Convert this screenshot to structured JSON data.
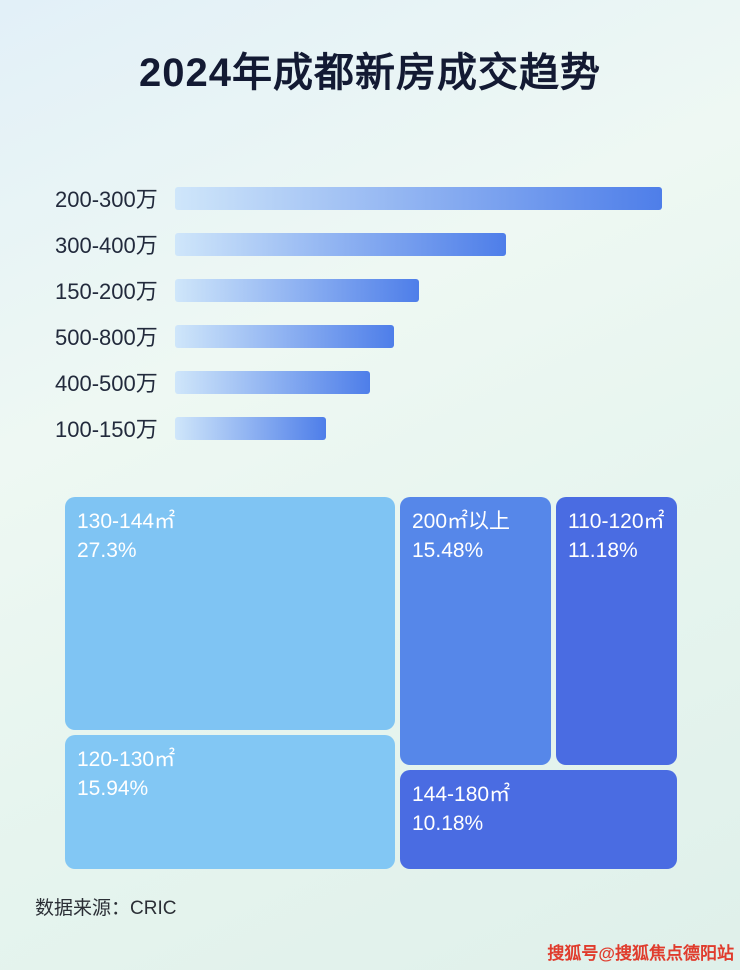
{
  "title": "2024年成都新房成交趋势",
  "chart_data": [
    {
      "type": "bar",
      "orientation": "horizontal",
      "categories": [
        "200-300万",
        "300-400万",
        "150-200万",
        "500-800万",
        "400-500万",
        "100-150万"
      ],
      "values": [
        100,
        68,
        50,
        45,
        40,
        31
      ],
      "value_note": "relative bar length, percent of longest bar (no numeric labels shown)",
      "xlim": [
        0,
        100
      ],
      "grid": false,
      "legend": false
    },
    {
      "type": "treemap",
      "items": [
        {
          "label": "130-144㎡",
          "value": 27.3,
          "value_text": "27.3%",
          "color": "#7fc4f3"
        },
        {
          "label": "200㎡以上",
          "value": 15.48,
          "value_text": "15.48%",
          "color": "#5687e9"
        },
        {
          "label": "110-120㎡",
          "value": 11.18,
          "value_text": "11.18%",
          "color": "#4a6ce2"
        },
        {
          "label": "120-130㎡",
          "value": 15.94,
          "value_text": "15.94%",
          "color": "#82c7f4"
        },
        {
          "label": "144-180㎡",
          "value": 10.18,
          "value_text": "10.18%",
          "color": "#4a6ce2"
        }
      ]
    }
  ],
  "footer": {
    "source": "数据来源：CRIC"
  },
  "watermark": "搜狐号@搜狐焦点德阳站",
  "colors": {
    "bar_gradient_start": "#cfe6fa",
    "bar_gradient_end": "#4e7ee9",
    "title_text": "#131a33",
    "watermark_red": "#e03c2d"
  }
}
